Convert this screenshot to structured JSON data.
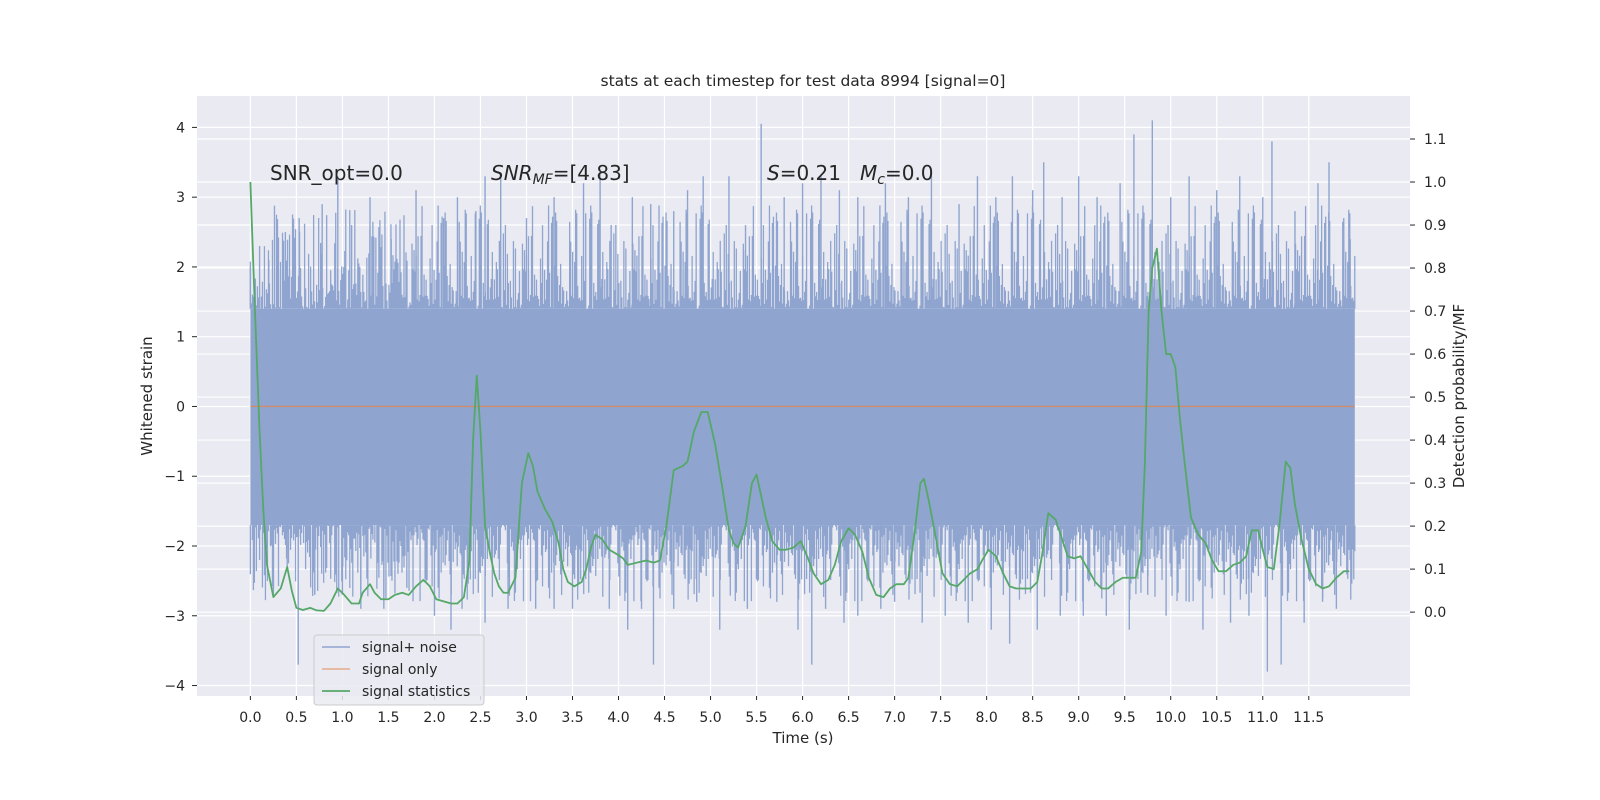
{
  "chart_data": {
    "type": "line",
    "title": "stats at each timestep for test data 8994 [signal=0]",
    "xlabel": "Time (s)",
    "ylabel": "Whitened strain",
    "ylabel_right": "Detection probability/MF",
    "xlim": [
      -0.58,
      12.6
    ],
    "ylim": [
      -4.15,
      4.45
    ],
    "ylim_right": [
      -0.195,
      1.2
    ],
    "x_ticks": [
      "0.0",
      "0.5",
      "1.0",
      "1.5",
      "2.0",
      "2.5",
      "3.0",
      "3.5",
      "4.0",
      "4.5",
      "5.0",
      "5.5",
      "6.0",
      "6.5",
      "7.0",
      "7.5",
      "8.0",
      "8.5",
      "9.0",
      "9.5",
      "10.0",
      "10.5",
      "11.0",
      "11.5"
    ],
    "y_ticks_left": [
      "4",
      "3",
      "2",
      "1",
      "0",
      "−1",
      "−2",
      "−3",
      "−4"
    ],
    "y_ticks_right": [
      "1.1",
      "1.0",
      "0.9",
      "0.8",
      "0.7",
      "0.6",
      "0.5",
      "0.4",
      "0.3",
      "0.2",
      "0.1",
      "0.0"
    ],
    "grid": true,
    "legend_position": "lower-left",
    "annotations": {
      "snr_opt": "SNR_opt=0.0",
      "snr_mf_main": "SNR",
      "snr_mf_sub": "MF",
      "snr_mf_value": "=[4.83]",
      "s_label": "S",
      "s_value": "=0.21",
      "mc_label": "M",
      "mc_sub": "c",
      "mc_value": "=0.0"
    },
    "series": [
      {
        "name": "signal+ noise",
        "color": "#8fa5cf",
        "axis": "left",
        "x_range": [
          0.0,
          12.0
        ],
        "band_upper": 1.4,
        "band_lower": -1.7,
        "spikes": [
          [
            0.0,
            2.0
          ],
          [
            0.1,
            2.3
          ],
          [
            0.2,
            2.1
          ],
          [
            0.38,
            2.5
          ],
          [
            0.53,
            2.7
          ],
          [
            0.78,
            2.9
          ],
          [
            0.95,
            3.3
          ],
          [
            1.1,
            2.6
          ],
          [
            1.3,
            3.0
          ],
          [
            1.53,
            2.4
          ],
          [
            1.8,
            3.1
          ],
          [
            2.1,
            2.7
          ],
          [
            2.25,
            3.0
          ],
          [
            2.45,
            2.8
          ],
          [
            2.55,
            3.3
          ],
          [
            2.72,
            3.3
          ],
          [
            3.0,
            2.7
          ],
          [
            3.3,
            3.0
          ],
          [
            3.62,
            3.2
          ],
          [
            3.8,
            3.4
          ],
          [
            3.92,
            2.6
          ],
          [
            4.15,
            3.0
          ],
          [
            4.35,
            2.9
          ],
          [
            4.6,
            2.8
          ],
          [
            4.75,
            3.1
          ],
          [
            4.92,
            3.3
          ],
          [
            5.2,
            3.3
          ],
          [
            5.38,
            2.6
          ],
          [
            5.55,
            4.05
          ],
          [
            5.8,
            3.0
          ],
          [
            6.0,
            3.2
          ],
          [
            6.2,
            3.3
          ],
          [
            6.4,
            3.1
          ],
          [
            6.6,
            3.0
          ],
          [
            6.9,
            3.2
          ],
          [
            7.15,
            3.0
          ],
          [
            7.4,
            3.3
          ],
          [
            7.7,
            2.9
          ],
          [
            7.9,
            3.3
          ],
          [
            8.1,
            3.0
          ],
          [
            8.28,
            3.3
          ],
          [
            8.5,
            3.1
          ],
          [
            8.62,
            3.5
          ],
          [
            8.82,
            3.0
          ],
          [
            9.0,
            3.3
          ],
          [
            9.2,
            3.0
          ],
          [
            9.45,
            3.2
          ],
          [
            9.6,
            3.9
          ],
          [
            9.8,
            4.1
          ],
          [
            10.0,
            3.0
          ],
          [
            10.2,
            3.3
          ],
          [
            10.5,
            3.1
          ],
          [
            10.75,
            3.3
          ],
          [
            11.0,
            3.0
          ],
          [
            11.1,
            3.8
          ],
          [
            11.35,
            2.8
          ],
          [
            11.6,
            3.2
          ],
          [
            11.72,
            3.5
          ],
          [
            11.88,
            2.7
          ],
          [
            11.95,
            2.4
          ],
          [
            0.0,
            -1.7
          ],
          [
            0.1,
            -2.2
          ],
          [
            0.25,
            -2.6
          ],
          [
            0.4,
            -2.3
          ],
          [
            0.52,
            -3.7
          ],
          [
            0.7,
            -2.7
          ],
          [
            1.0,
            -2.7
          ],
          [
            1.2,
            -2.9
          ],
          [
            1.45,
            -2.9
          ],
          [
            1.7,
            -2.6
          ],
          [
            2.0,
            -3.0
          ],
          [
            2.18,
            -3.2
          ],
          [
            2.3,
            -2.9
          ],
          [
            2.55,
            -3.1
          ],
          [
            2.8,
            -2.9
          ],
          [
            3.1,
            -2.9
          ],
          [
            3.3,
            -2.9
          ],
          [
            3.5,
            -2.9
          ],
          [
            3.9,
            -2.9
          ],
          [
            4.1,
            -3.2
          ],
          [
            4.25,
            -2.9
          ],
          [
            4.38,
            -3.7
          ],
          [
            4.6,
            -2.9
          ],
          [
            4.85,
            -2.8
          ],
          [
            5.1,
            -3.2
          ],
          [
            5.4,
            -2.9
          ],
          [
            5.72,
            -2.8
          ],
          [
            5.95,
            -3.2
          ],
          [
            6.1,
            -3.7
          ],
          [
            6.25,
            -2.9
          ],
          [
            6.45,
            -3.1
          ],
          [
            6.6,
            -3.0
          ],
          [
            6.85,
            -2.9
          ],
          [
            7.0,
            -2.8
          ],
          [
            7.3,
            -3.1
          ],
          [
            7.55,
            -3.0
          ],
          [
            7.8,
            -3.1
          ],
          [
            8.05,
            -3.2
          ],
          [
            8.25,
            -3.4
          ],
          [
            8.55,
            -3.2
          ],
          [
            8.8,
            -3.0
          ],
          [
            9.05,
            -3.0
          ],
          [
            9.3,
            -3.0
          ],
          [
            9.55,
            -3.2
          ],
          [
            9.75,
            -2.7
          ],
          [
            9.95,
            -3.0
          ],
          [
            10.2,
            -2.8
          ],
          [
            10.35,
            -3.2
          ],
          [
            10.65,
            -3.1
          ],
          [
            10.85,
            -3.0
          ],
          [
            11.05,
            -3.8
          ],
          [
            11.2,
            -3.7
          ],
          [
            11.45,
            -3.1
          ],
          [
            11.65,
            -2.8
          ],
          [
            11.8,
            -2.9
          ],
          [
            11.95,
            -2.2
          ]
        ]
      },
      {
        "name": "signal only",
        "color": "#dd8452",
        "axis": "left",
        "x": [
          0.0,
          12.0
        ],
        "y": [
          0.0,
          0.0
        ]
      },
      {
        "name": "signal statistics",
        "color": "#55a868",
        "axis": "right",
        "points": [
          [
            0.0,
            1.0
          ],
          [
            0.05,
            0.7
          ],
          [
            0.1,
            0.42
          ],
          [
            0.14,
            0.24
          ],
          [
            0.18,
            0.11
          ],
          [
            0.25,
            0.035
          ],
          [
            0.33,
            0.055
          ],
          [
            0.4,
            0.105
          ],
          [
            0.45,
            0.05
          ],
          [
            0.5,
            0.01
          ],
          [
            0.57,
            0.005
          ],
          [
            0.65,
            0.01
          ],
          [
            0.72,
            0.004
          ],
          [
            0.8,
            0.003
          ],
          [
            0.87,
            0.02
          ],
          [
            0.95,
            0.055
          ],
          [
            1.02,
            0.04
          ],
          [
            1.1,
            0.02
          ],
          [
            1.18,
            0.02
          ],
          [
            1.22,
            0.045
          ],
          [
            1.3,
            0.065
          ],
          [
            1.35,
            0.045
          ],
          [
            1.42,
            0.03
          ],
          [
            1.5,
            0.03
          ],
          [
            1.57,
            0.04
          ],
          [
            1.65,
            0.045
          ],
          [
            1.72,
            0.04
          ],
          [
            1.8,
            0.06
          ],
          [
            1.88,
            0.075
          ],
          [
            1.95,
            0.06
          ],
          [
            2.02,
            0.03
          ],
          [
            2.1,
            0.025
          ],
          [
            2.18,
            0.02
          ],
          [
            2.25,
            0.02
          ],
          [
            2.32,
            0.035
          ],
          [
            2.38,
            0.12
          ],
          [
            2.42,
            0.4
          ],
          [
            2.46,
            0.55
          ],
          [
            2.5,
            0.42
          ],
          [
            2.55,
            0.2
          ],
          [
            2.6,
            0.14
          ],
          [
            2.65,
            0.09
          ],
          [
            2.7,
            0.06
          ],
          [
            2.75,
            0.045
          ],
          [
            2.8,
            0.045
          ],
          [
            2.88,
            0.08
          ],
          [
            2.95,
            0.3
          ],
          [
            3.02,
            0.37
          ],
          [
            3.07,
            0.34
          ],
          [
            3.12,
            0.28
          ],
          [
            3.2,
            0.24
          ],
          [
            3.28,
            0.21
          ],
          [
            3.35,
            0.16
          ],
          [
            3.4,
            0.1
          ],
          [
            3.45,
            0.07
          ],
          [
            3.52,
            0.06
          ],
          [
            3.6,
            0.07
          ],
          [
            3.65,
            0.1
          ],
          [
            3.7,
            0.15
          ],
          [
            3.75,
            0.18
          ],
          [
            3.82,
            0.17
          ],
          [
            3.9,
            0.145
          ],
          [
            3.98,
            0.135
          ],
          [
            4.05,
            0.125
          ],
          [
            4.1,
            0.11
          ],
          [
            4.2,
            0.115
          ],
          [
            4.3,
            0.12
          ],
          [
            4.38,
            0.115
          ],
          [
            4.45,
            0.12
          ],
          [
            4.52,
            0.2
          ],
          [
            4.6,
            0.33
          ],
          [
            4.7,
            0.34
          ],
          [
            4.75,
            0.35
          ],
          [
            4.82,
            0.42
          ],
          [
            4.9,
            0.465
          ],
          [
            4.97,
            0.465
          ],
          [
            5.05,
            0.39
          ],
          [
            5.12,
            0.3
          ],
          [
            5.2,
            0.19
          ],
          [
            5.25,
            0.16
          ],
          [
            5.3,
            0.15
          ],
          [
            5.38,
            0.2
          ],
          [
            5.45,
            0.3
          ],
          [
            5.5,
            0.32
          ],
          [
            5.55,
            0.27
          ],
          [
            5.6,
            0.22
          ],
          [
            5.67,
            0.165
          ],
          [
            5.75,
            0.145
          ],
          [
            5.82,
            0.145
          ],
          [
            5.9,
            0.15
          ],
          [
            5.98,
            0.165
          ],
          [
            6.05,
            0.13
          ],
          [
            6.12,
            0.09
          ],
          [
            6.2,
            0.065
          ],
          [
            6.28,
            0.075
          ],
          [
            6.35,
            0.11
          ],
          [
            6.42,
            0.165
          ],
          [
            6.5,
            0.195
          ],
          [
            6.57,
            0.18
          ],
          [
            6.65,
            0.14
          ],
          [
            6.72,
            0.08
          ],
          [
            6.8,
            0.04
          ],
          [
            6.88,
            0.035
          ],
          [
            6.95,
            0.055
          ],
          [
            7.02,
            0.065
          ],
          [
            7.1,
            0.065
          ],
          [
            7.15,
            0.08
          ],
          [
            7.22,
            0.19
          ],
          [
            7.28,
            0.3
          ],
          [
            7.32,
            0.31
          ],
          [
            7.38,
            0.25
          ],
          [
            7.45,
            0.17
          ],
          [
            7.52,
            0.09
          ],
          [
            7.6,
            0.065
          ],
          [
            7.68,
            0.06
          ],
          [
            7.75,
            0.075
          ],
          [
            7.82,
            0.09
          ],
          [
            7.9,
            0.1
          ],
          [
            7.95,
            0.12
          ],
          [
            8.02,
            0.145
          ],
          [
            8.1,
            0.13
          ],
          [
            8.18,
            0.09
          ],
          [
            8.25,
            0.06
          ],
          [
            8.32,
            0.055
          ],
          [
            8.4,
            0.055
          ],
          [
            8.48,
            0.055
          ],
          [
            8.55,
            0.07
          ],
          [
            8.6,
            0.13
          ],
          [
            8.67,
            0.23
          ],
          [
            8.75,
            0.215
          ],
          [
            8.82,
            0.17
          ],
          [
            8.88,
            0.13
          ],
          [
            8.95,
            0.125
          ],
          [
            9.02,
            0.13
          ],
          [
            9.1,
            0.1
          ],
          [
            9.18,
            0.07
          ],
          [
            9.25,
            0.055
          ],
          [
            9.32,
            0.055
          ],
          [
            9.4,
            0.07
          ],
          [
            9.48,
            0.08
          ],
          [
            9.55,
            0.08
          ],
          [
            9.62,
            0.08
          ],
          [
            9.68,
            0.14
          ],
          [
            9.72,
            0.35
          ],
          [
            9.76,
            0.7
          ],
          [
            9.8,
            0.8
          ],
          [
            9.85,
            0.845
          ],
          [
            9.9,
            0.7
          ],
          [
            9.95,
            0.6
          ],
          [
            10.0,
            0.6
          ],
          [
            10.05,
            0.57
          ],
          [
            10.1,
            0.45
          ],
          [
            10.15,
            0.35
          ],
          [
            10.22,
            0.22
          ],
          [
            10.3,
            0.18
          ],
          [
            10.38,
            0.16
          ],
          [
            10.45,
            0.12
          ],
          [
            10.52,
            0.095
          ],
          [
            10.6,
            0.095
          ],
          [
            10.68,
            0.11
          ],
          [
            10.75,
            0.115
          ],
          [
            10.82,
            0.13
          ],
          [
            10.88,
            0.19
          ],
          [
            10.95,
            0.19
          ],
          [
            11.0,
            0.145
          ],
          [
            11.05,
            0.105
          ],
          [
            11.12,
            0.1
          ],
          [
            11.18,
            0.2
          ],
          [
            11.25,
            0.35
          ],
          [
            11.3,
            0.335
          ],
          [
            11.35,
            0.25
          ],
          [
            11.42,
            0.17
          ],
          [
            11.5,
            0.1
          ],
          [
            11.58,
            0.065
          ],
          [
            11.65,
            0.055
          ],
          [
            11.72,
            0.06
          ],
          [
            11.8,
            0.08
          ],
          [
            11.88,
            0.095
          ],
          [
            11.94,
            0.095
          ]
        ]
      }
    ]
  }
}
